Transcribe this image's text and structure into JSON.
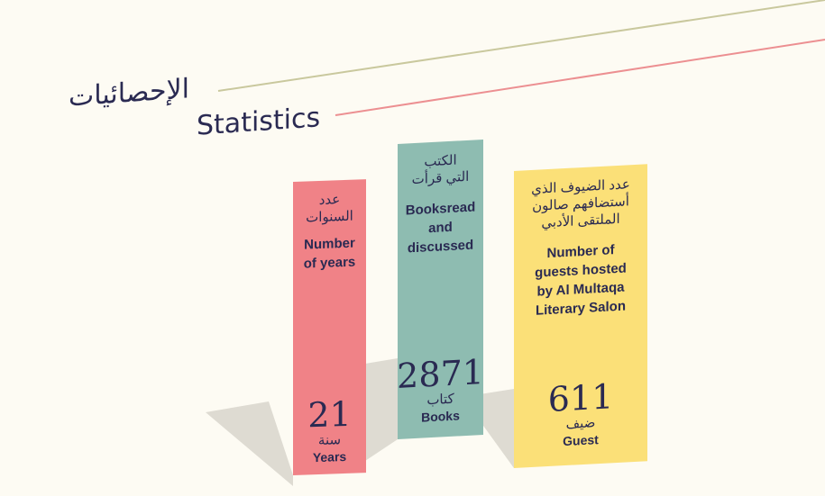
{
  "header": {
    "title_ar": "الإحصائيات",
    "title_en": "Statistics"
  },
  "colors": {
    "background": "#fdfbf3",
    "text": "#2a2a52",
    "years": "#f08287",
    "books": "#8ebcb1",
    "guests": "#fbe078",
    "line_olive": "#c9c89d",
    "line_pink": "#ec8f91",
    "shadow": "#dedbd2"
  },
  "stats": {
    "years": {
      "label_ar_line1": "عدد",
      "label_ar_line2": "السنوات",
      "label_en_line1": "Number",
      "label_en_line2": "of years",
      "value": "21",
      "unit_ar": "سنة",
      "unit_en": "Years"
    },
    "books": {
      "label_ar_line1": "الكتب",
      "label_ar_line2": "التي قرأت",
      "label_en_line1": "Booksread",
      "label_en_line2": "and",
      "label_en_line3": "discussed",
      "value": "2871",
      "unit_ar": "كتاب",
      "unit_en": "Books"
    },
    "guests": {
      "label_ar_line1": "عدد الضيوف الذي",
      "label_ar_line2": "أستضافهم صالون",
      "label_ar_line3": "الملتقى الأدبي",
      "label_en_line1": "Number of",
      "label_en_line2": "guests hosted",
      "label_en_line3": "by Al Multaqa",
      "label_en_line4": "Literary Salon",
      "value": "611",
      "unit_ar": "ضيف",
      "unit_en": "Guest"
    }
  }
}
